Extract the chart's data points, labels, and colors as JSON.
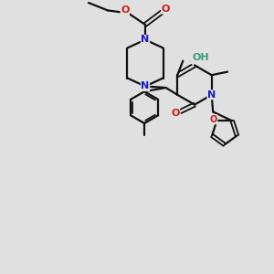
{
  "bg_color": "#e0e0e0",
  "bond_color": "#111111",
  "N_color": "#1a1acc",
  "O_color": "#cc1a1a",
  "OH_color": "#3a9a7a",
  "figsize": [
    3.0,
    3.0
  ],
  "dpi": 100,
  "xlim": [
    0,
    10
  ],
  "ylim": [
    0,
    10
  ]
}
